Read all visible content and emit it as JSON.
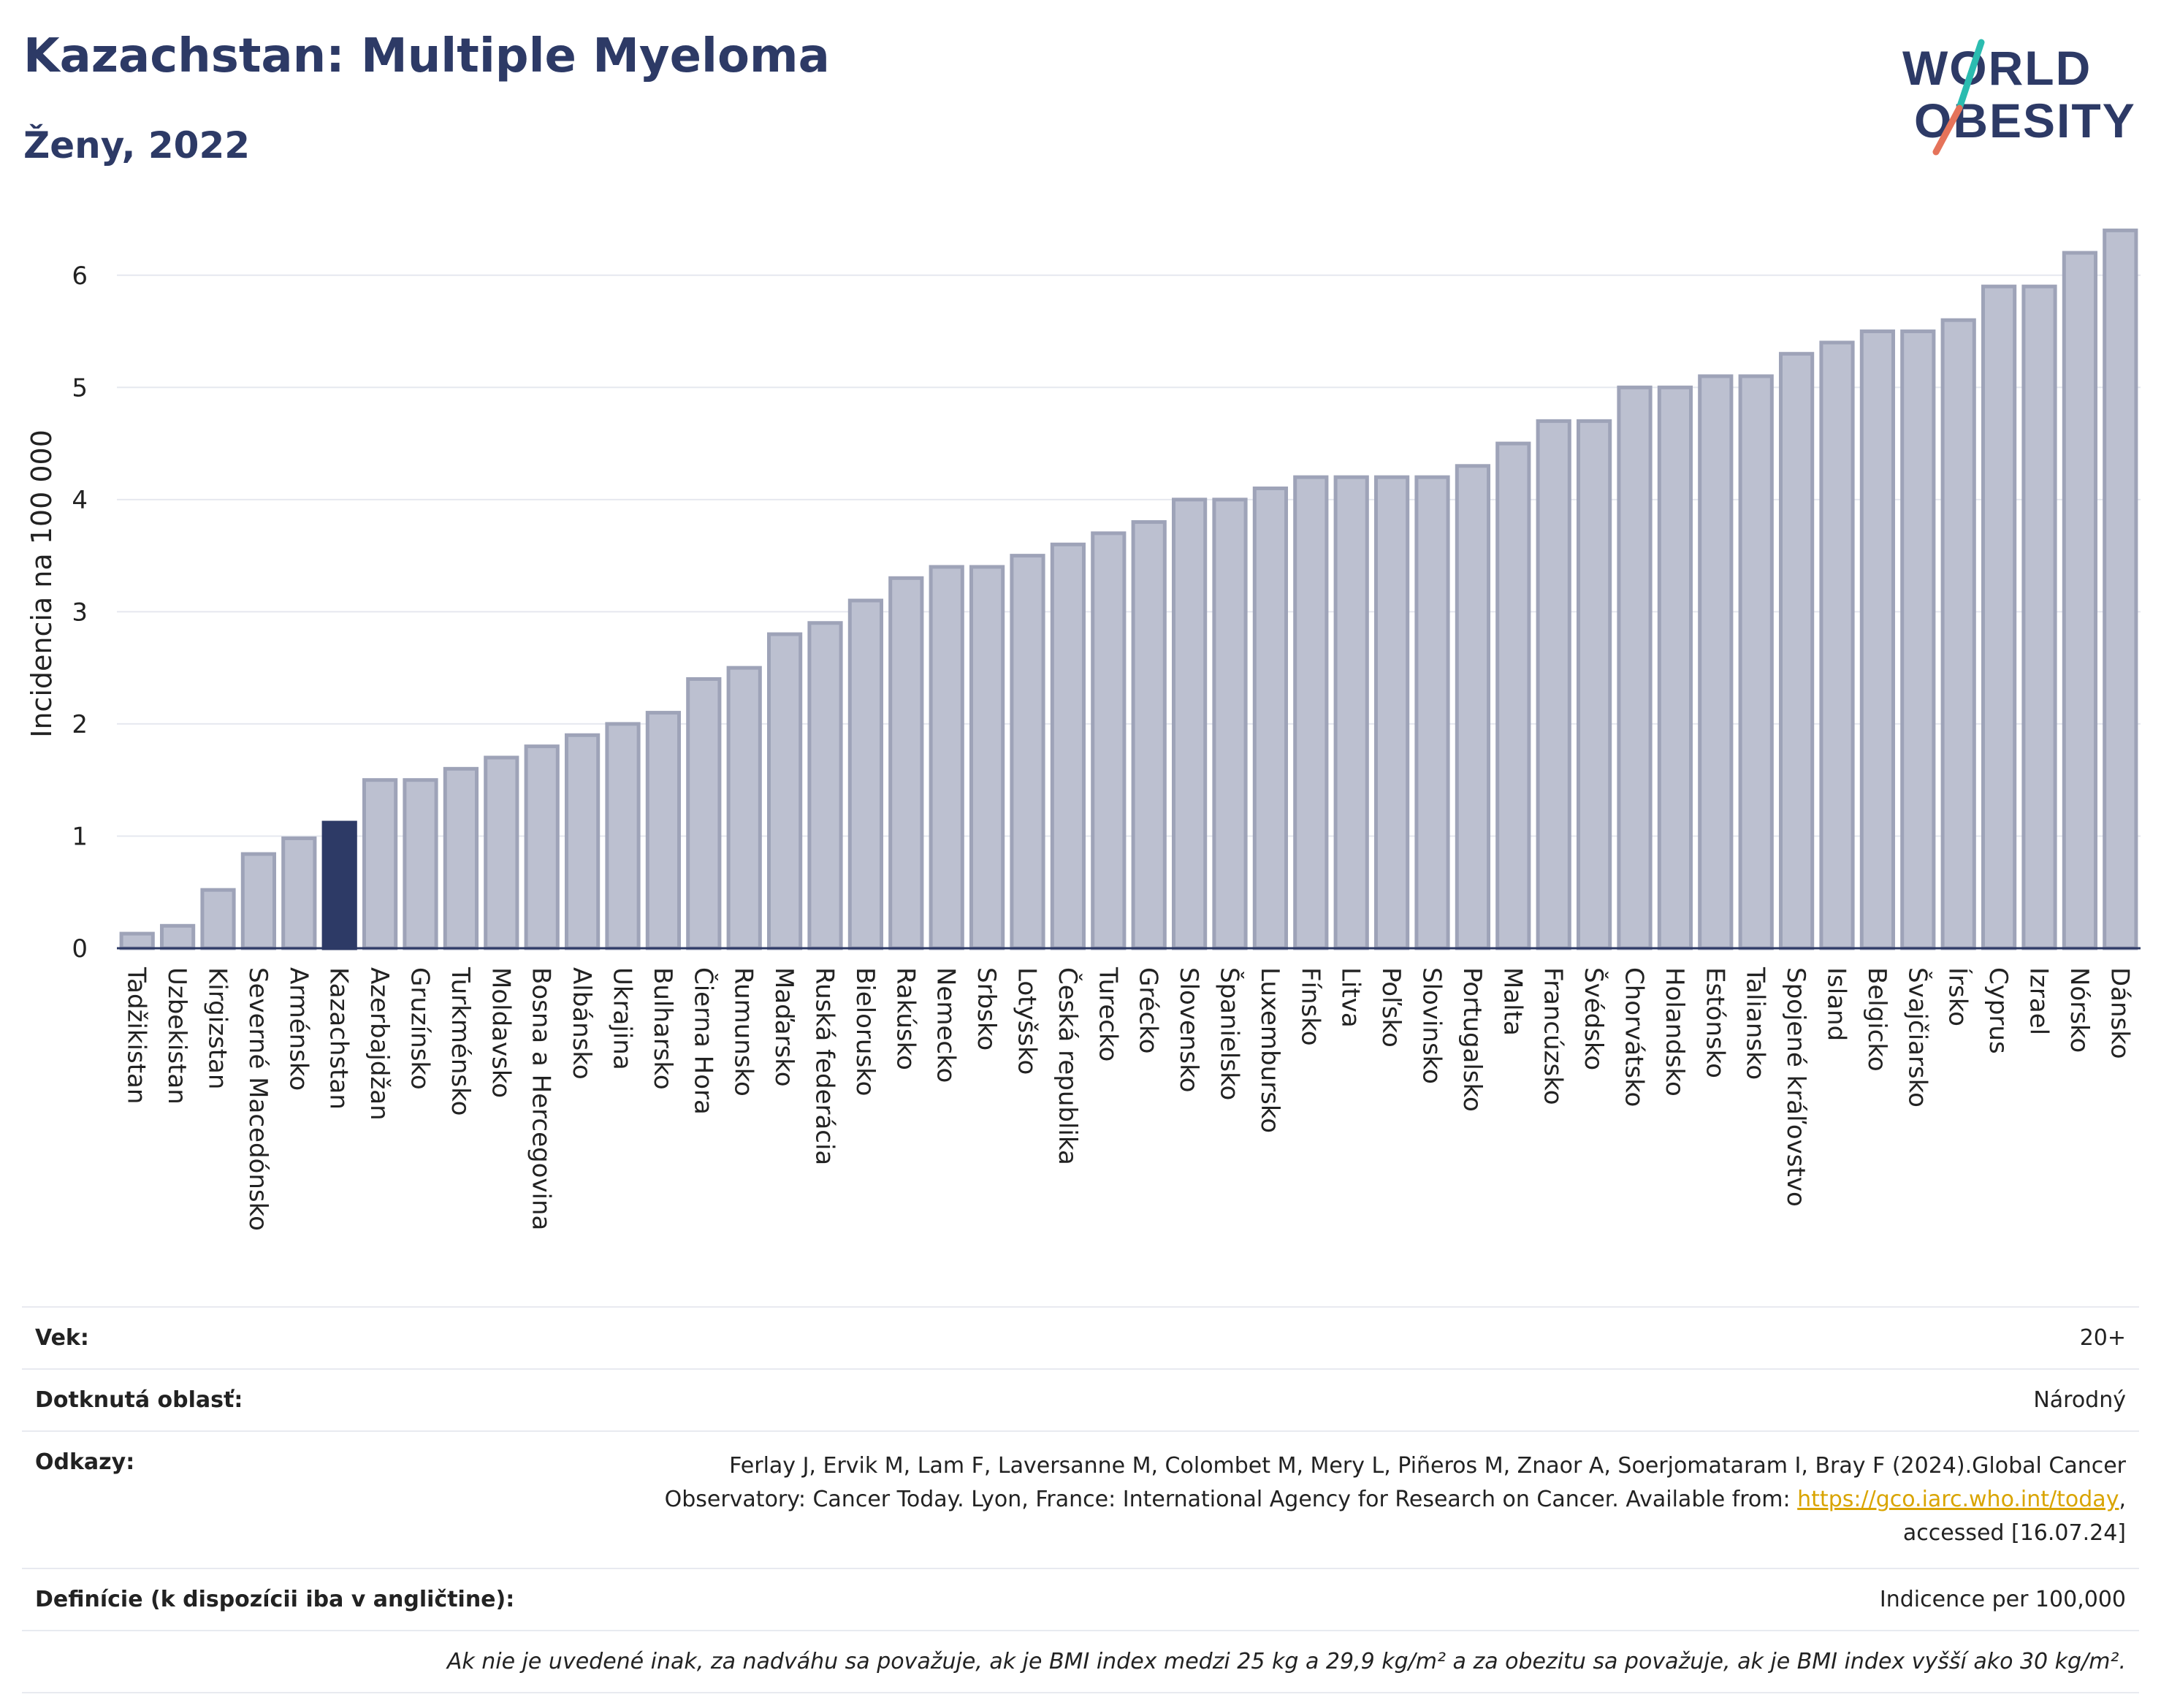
{
  "header": {
    "title": "Kazachstan: Multiple Myeloma",
    "subtitle": "Ženy, 2022"
  },
  "logo": {
    "line1": "WORLD",
    "line2": "OBESITY",
    "accent_color": "#2bbcb0",
    "accent_color2": "#e5735a",
    "text_color": "#2d3a66"
  },
  "colors": {
    "bar": "#bcc0d0",
    "bar_stroke": "#9ea3b8",
    "highlight": "#2d3a66",
    "grid": "#e6e8ef",
    "axis": "#2d3a66"
  },
  "chart_data": {
    "type": "bar",
    "ylabel": "Incidencia na 100 000",
    "ylim": [
      0,
      6.5
    ],
    "yticks": [
      0,
      1,
      2,
      3,
      4,
      5,
      6
    ],
    "grid": true,
    "highlight": "Kazachstan",
    "categories": [
      "Tadžikistan",
      "Uzbekistan",
      "Kirgizstan",
      "Severné Macedónsko",
      "Arménsko",
      "Kazachstan",
      "Azerbajdžan",
      "Gruzínsko",
      "Turkménsko",
      "Moldavsko",
      "Bosna a Hercegovina",
      "Albánsko",
      "Ukrajina",
      "Bulharsko",
      "Čierna Hora",
      "Rumunsko",
      "Maďarsko",
      "Ruská federácia",
      "Bielorusko",
      "Rakúsko",
      "Nemecko",
      "Srbsko",
      "Lotyšsko",
      "Česká republika",
      "Turecko",
      "Grécko",
      "Slovensko",
      "Španielsko",
      "Luxembursko",
      "Fínsko",
      "Litva",
      "Poľsko",
      "Slovinsko",
      "Portugalsko",
      "Malta",
      "Francúzsko",
      "Švédsko",
      "Chorvátsko",
      "Holandsko",
      "Estónsko",
      "Taliansko",
      "Spojené kráľovstvo",
      "Island",
      "Belgicko",
      "Švajčiarsko",
      "Írsko",
      "Cyprus",
      "Izrael",
      "Nórsko",
      "Dánsko"
    ],
    "values": [
      0.13,
      0.2,
      0.52,
      0.84,
      0.98,
      1.12,
      1.5,
      1.5,
      1.6,
      1.7,
      1.8,
      1.9,
      2.0,
      2.1,
      2.4,
      2.5,
      2.8,
      2.9,
      3.1,
      3.3,
      3.4,
      3.4,
      3.5,
      3.6,
      3.7,
      3.8,
      4.0,
      4.0,
      4.1,
      4.2,
      4.2,
      4.2,
      4.2,
      4.3,
      4.5,
      4.7,
      4.7,
      5.0,
      5.0,
      5.1,
      5.1,
      5.3,
      5.4,
      5.5,
      5.5,
      5.6,
      5.9,
      5.9,
      6.2,
      6.4
    ]
  },
  "info": {
    "age_label": "Vek:",
    "age_value": "20+",
    "area_label": "Dotknutá oblasť:",
    "area_value": "Národný",
    "refs_label": "Odkazy:",
    "refs_text": "Ferlay J, Ervik M, Lam F, Laversanne M, Colombet M, Mery L, Piñeros M, Znaor A, Soerjomataram I, Bray F (2024).Global Cancer Observatory: Cancer Today. Lyon, France: International Agency for Research on Cancer. Available from: ",
    "refs_link": "https://gco.iarc.who.int/today",
    "refs_tail": ", accessed [16.07.24]",
    "def_label": "Definície (k dispozícii iba v angličtine):",
    "def_value": "Indicence per 100,000",
    "note": "Ak nie je uvedené inak, za nadváhu sa považuje, ak je BMI index medzi 25 kg a 29,9 kg/m² a za obezitu sa považuje, ak je BMI index vyšší ako 30 kg/m²."
  }
}
